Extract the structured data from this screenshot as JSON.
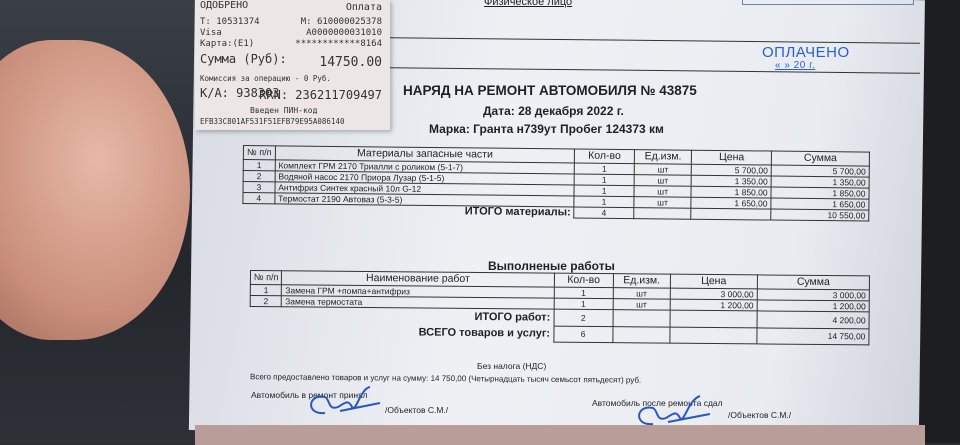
{
  "receipt": {
    "status": "ОДОБРЕНО",
    "operation": "Оплата",
    "terminal": "Т: 10531374",
    "merchant": "М: 610000025378",
    "card_type": "Visa",
    "aid": "A0000000031010",
    "card_label": "Карта:(E1)",
    "card_number": "************8164",
    "amount_label": "Сумма (Руб):",
    "amount": "14750.00",
    "commission": "Комиссия за операцию - 0 Руб.",
    "auth_code": "К/А: 938303",
    "rrn": "RRN:  236211709497",
    "pin": "Введен ПИН-код",
    "hash": "EFB33C801AF531F51EFB79E95A086140"
  },
  "header": {
    "client_type": "Физическое лицо",
    "stamp_paid": "ОПЛАЧЕНО",
    "stamp_date": "«  »   20   г.",
    "title": "НАРЯД  НА РЕМОНТ АВТОМОБИЛЯ № 43875",
    "date": "Дата: 28 декабря 2022 г.",
    "car": "Марка: Гранта н739ут   Пробег 124373 км"
  },
  "materials": {
    "columns": [
      "№ п/п",
      "Материалы запасные части",
      "Кол-во",
      "Ед.изм.",
      "Цена",
      "Сумма"
    ],
    "rows": [
      {
        "n": "1",
        "name": "Комплект ГРМ 2170 Триалли с роликом (5-1-7)",
        "qty": "1",
        "unit": "шт",
        "price": "5 700,00",
        "sum": "5 700,00"
      },
      {
        "n": "2",
        "name": "Водяной насос 2170 Приора Лузар (5-1-5)",
        "qty": "1",
        "unit": "шт",
        "price": "1 350,00",
        "sum": "1 350,00"
      },
      {
        "n": "3",
        "name": "Антифриз Синтек красный 10л G-12",
        "qty": "1",
        "unit": "шт",
        "price": "1 850,00",
        "sum": "1 850,00"
      },
      {
        "n": "4",
        "name": "Термостат 2190 Автоваз (5-3-5)",
        "qty": "1",
        "unit": "шт",
        "price": "1 650,00",
        "sum": "1 650,00"
      }
    ],
    "total_label": "ИТОГО материалы:",
    "total_qty": "4",
    "total_sum": "10 550,00"
  },
  "works": {
    "title": "Выполненые работы",
    "columns": [
      "№ п/п",
      "Наименование  работ",
      "Кол-во",
      "Ед.изм.",
      "Цена",
      "Сумма"
    ],
    "rows": [
      {
        "n": "1",
        "name": "Замена ГРМ +помпа+антифриз",
        "qty": "1",
        "unit": "шт",
        "price": "3 000,00",
        "sum": "3 000,00"
      },
      {
        "n": "2",
        "name": "Замена термостата",
        "qty": "1",
        "unit": "шт",
        "price": "1 200,00",
        "sum": "1 200,00"
      }
    ],
    "total_label": "ИТОГО работ:",
    "total_qty": "2",
    "total_sum": "4 200,00",
    "grand_label": "ВСЕГО товаров и услуг:",
    "grand_qty": "6",
    "grand_sum": "14 750,00"
  },
  "footer": {
    "tax": "Без налога (НДС)",
    "summary": "Всего предоставлено товаров и услуг на сумму: 14 750,00 (Четырнадцать тысяч семьсот пятьдесят) руб.",
    "accepted": "Автомобиль в ремонт принял",
    "accepted_name": "/Объектов С.М./",
    "returned": "Автомобиль после ремонта сдал",
    "returned_name": "/Объектов С.М./"
  }
}
